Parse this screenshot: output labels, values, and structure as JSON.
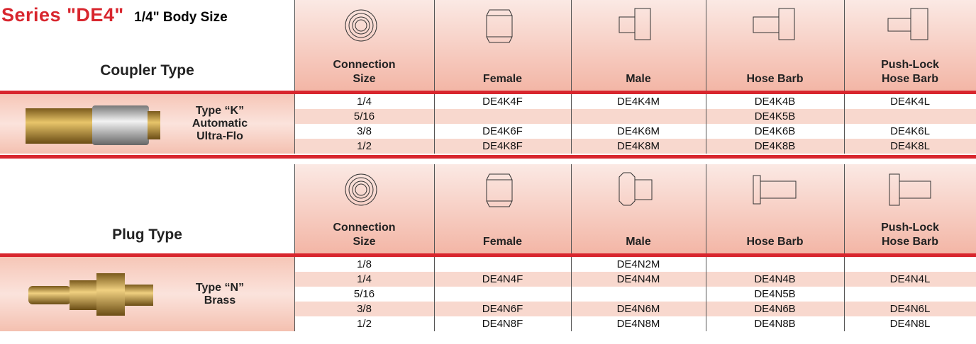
{
  "header": {
    "series": "Series \"DE4\"",
    "body_size": "1/4\" Body Size"
  },
  "sections": [
    {
      "type_label": "Coupler Type",
      "columns": [
        [
          "Connection",
          "Size"
        ],
        [
          "Female"
        ],
        [
          "Male"
        ],
        [
          "Hose Barb"
        ],
        [
          "Push-Lock",
          "Hose Barb"
        ]
      ],
      "product": [
        "Type “K”",
        "Automatic",
        "Ultra-Flo"
      ],
      "rows": [
        [
          "1/4",
          "DE4K4F",
          "DE4K4M",
          "DE4K4B",
          "DE4K4L"
        ],
        [
          "5/16",
          null,
          null,
          "DE4K5B",
          null
        ],
        [
          "3/8",
          "DE4K6F",
          "DE4K6M",
          "DE4K6B",
          "DE4K6L"
        ],
        [
          "1/2",
          "DE4K8F",
          "DE4K8M",
          "DE4K8B",
          "DE4K8L"
        ]
      ]
    },
    {
      "type_label": "Plug Type",
      "columns": [
        [
          "Connection",
          "Size"
        ],
        [
          "Female"
        ],
        [
          "Male"
        ],
        [
          "Hose Barb"
        ],
        [
          "Push-Lock",
          "Hose Barb"
        ]
      ],
      "product": [
        "Type “N”",
        "Brass"
      ],
      "rows": [
        [
          "1/8",
          null,
          "DE4N2M",
          null,
          null
        ],
        [
          "1/4",
          "DE4N4F",
          "DE4N4M",
          "DE4N4B",
          "DE4N4L"
        ],
        [
          "5/16",
          null,
          null,
          "DE4N5B",
          null
        ],
        [
          "3/8",
          "DE4N6F",
          "DE4N6M",
          "DE4N6B",
          "DE4N6L"
        ],
        [
          "1/2",
          "DE4N8F",
          "DE4N8M",
          "DE4N8B",
          "DE4N8L"
        ]
      ]
    }
  ]
}
